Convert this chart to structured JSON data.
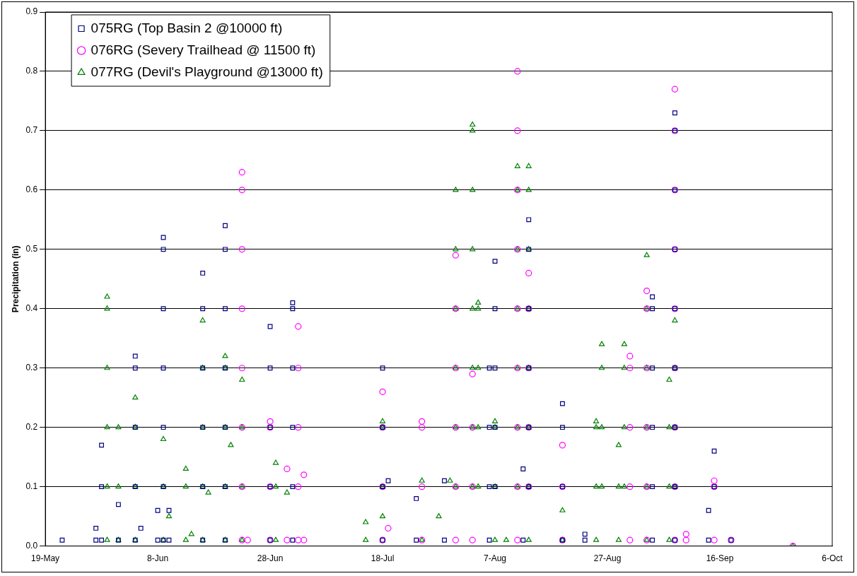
{
  "chart_data": {
    "type": "scatter",
    "ylabel": "Precipitation (in)",
    "xlim": [
      "--05-19",
      "--10-06"
    ],
    "ylim": [
      0,
      0.9
    ],
    "xticks": [
      {
        "value": "--05-19",
        "label": "19-May"
      },
      {
        "value": "--06-08",
        "label": "8-Jun"
      },
      {
        "value": "--06-28",
        "label": "28-Jun"
      },
      {
        "value": "--07-18",
        "label": "18-Jul"
      },
      {
        "value": "--08-07",
        "label": "7-Aug"
      },
      {
        "value": "--08-27",
        "label": "27-Aug"
      },
      {
        "value": "--09-16",
        "label": "16-Sep"
      },
      {
        "value": "--10-06",
        "label": "6-Oct"
      }
    ],
    "yticks": [
      {
        "value": 0,
        "label": "0.0"
      },
      0.1,
      0.2,
      0.3,
      0.4,
      0.5,
      0.6,
      0.7,
      0.8,
      0.9
    ],
    "grid": "y",
    "legend": "top left",
    "series": [
      {
        "name": "075RG (Top Basin 2 @10000 ft)",
        "color": "#000080",
        "marker": "square",
        "x": [
          "--05-22",
          "--05-28",
          "--05-28",
          "--05-29",
          "--05-29",
          "--05-29",
          "--06-01",
          "--06-01",
          "--06-04",
          "--06-04",
          "--06-04",
          "--06-04",
          "--06-04",
          "--06-05",
          "--06-08",
          "--06-08",
          "--06-09",
          "--06-09",
          "--06-09",
          "--06-09",
          "--06-09",
          "--06-09",
          "--06-09",
          "--06-10",
          "--06-10",
          "--06-16",
          "--06-16",
          "--06-16",
          "--06-16",
          "--06-16",
          "--06-16",
          "--06-20",
          "--06-20",
          "--06-20",
          "--06-20",
          "--06-20",
          "--06-20",
          "--06-20",
          "--06-28",
          "--06-28",
          "--06-28",
          "--06-28",
          "--06-28",
          "--07-02",
          "--07-02",
          "--07-02",
          "--07-02",
          "--07-02",
          "--07-02",
          "--07-18",
          "--07-18",
          "--07-18",
          "--07-18",
          "--07-19",
          "--07-24",
          "--07-24",
          "--07-29",
          "--07-29",
          "--08-06",
          "--08-06",
          "--08-06",
          "--08-06",
          "--08-07",
          "--08-07",
          "--08-07",
          "--08-07",
          "--08-07",
          "--08-12",
          "--08-12",
          "--08-13",
          "--08-13",
          "--08-13",
          "--08-13",
          "--08-13",
          "--08-13",
          "--08-19",
          "--08-19",
          "--08-19",
          "--08-19",
          "--08-23",
          "--08-23",
          "--09-04",
          "--09-04",
          "--09-04",
          "--09-04",
          "--09-04",
          "--09-04",
          "--09-08",
          "--09-08",
          "--09-08",
          "--09-08",
          "--09-08",
          "--09-08",
          "--09-08",
          "--09-08",
          "--09-08",
          "--09-14",
          "--09-14",
          "--09-15",
          "--09-15",
          "--09-18"
        ],
        "values": [
          0.01,
          0.01,
          0.03,
          0.01,
          0.1,
          0.17,
          0.01,
          0.07,
          0.01,
          0.1,
          0.2,
          0.3,
          0.32,
          0.03,
          0.01,
          0.06,
          0.01,
          0.1,
          0.2,
          0.3,
          0.4,
          0.5,
          0.52,
          0.01,
          0.06,
          0.01,
          0.1,
          0.2,
          0.3,
          0.4,
          0.46,
          0.01,
          0.1,
          0.2,
          0.3,
          0.4,
          0.5,
          0.54,
          0.01,
          0.1,
          0.2,
          0.3,
          0.37,
          0.01,
          0.1,
          0.2,
          0.3,
          0.4,
          0.41,
          0.01,
          0.1,
          0.2,
          0.3,
          0.11,
          0.01,
          0.08,
          0.01,
          0.11,
          0.01,
          0.1,
          0.2,
          0.3,
          0.1,
          0.2,
          0.3,
          0.4,
          0.48,
          0.01,
          0.13,
          0.1,
          0.2,
          0.3,
          0.4,
          0.5,
          0.55,
          0.01,
          0.1,
          0.2,
          0.24,
          0.01,
          0.02,
          0.01,
          0.1,
          0.2,
          0.3,
          0.4,
          0.42,
          0.01,
          0.1,
          0.2,
          0.3,
          0.4,
          0.5,
          0.6,
          0.7,
          0.73,
          0.01,
          0.06,
          0.1,
          0.16,
          0.01
        ]
      },
      {
        "name": "076RG (Severy Trailhead @ 11500 ft)",
        "color": "#ff00ff",
        "marker": "circle",
        "x": [
          "--06-23",
          "--06-23",
          "--06-23",
          "--06-23",
          "--06-23",
          "--06-23",
          "--06-23",
          "--06-23",
          "--06-24",
          "--06-28",
          "--06-28",
          "--06-28",
          "--06-28",
          "--07-01",
          "--07-01",
          "--07-03",
          "--07-03",
          "--07-03",
          "--07-03",
          "--07-03",
          "--07-04",
          "--07-04",
          "--07-18",
          "--07-18",
          "--07-18",
          "--07-18",
          "--07-19",
          "--07-25",
          "--07-25",
          "--07-25",
          "--07-25",
          "--07-31",
          "--07-31",
          "--07-31",
          "--07-31",
          "--07-31",
          "--07-31",
          "--08-03",
          "--08-03",
          "--08-03",
          "--08-03",
          "--08-11",
          "--08-11",
          "--08-11",
          "--08-11",
          "--08-11",
          "--08-11",
          "--08-11",
          "--08-11",
          "--08-11",
          "--08-13",
          "--08-13",
          "--08-13",
          "--08-13",
          "--08-13",
          "--08-19",
          "--08-19",
          "--08-19",
          "--08-31",
          "--08-31",
          "--08-31",
          "--08-31",
          "--08-31",
          "--09-03",
          "--09-03",
          "--09-03",
          "--09-03",
          "--09-03",
          "--09-03",
          "--09-08",
          "--09-08",
          "--09-08",
          "--09-08",
          "--09-08",
          "--09-08",
          "--09-08",
          "--09-08",
          "--09-08",
          "--09-10",
          "--09-10",
          "--09-15",
          "--09-15",
          "--09-15",
          "--09-18",
          "--09-29"
        ],
        "values": [
          0.01,
          0.1,
          0.2,
          0.3,
          0.4,
          0.5,
          0.6,
          0.63,
          0.01,
          0.01,
          0.1,
          0.2,
          0.21,
          0.01,
          0.13,
          0.01,
          0.1,
          0.2,
          0.3,
          0.37,
          0.01,
          0.12,
          0.01,
          0.1,
          0.2,
          0.26,
          0.03,
          0.01,
          0.1,
          0.2,
          0.21,
          0.01,
          0.1,
          0.2,
          0.3,
          0.4,
          0.49,
          0.01,
          0.1,
          0.2,
          0.29,
          0.01,
          0.1,
          0.2,
          0.3,
          0.4,
          0.5,
          0.6,
          0.7,
          0.8,
          0.1,
          0.2,
          0.3,
          0.4,
          0.46,
          0.01,
          0.1,
          0.17,
          0.01,
          0.1,
          0.2,
          0.3,
          0.32,
          0.01,
          0.1,
          0.2,
          0.3,
          0.4,
          0.43,
          0.01,
          0.1,
          0.2,
          0.3,
          0.4,
          0.5,
          0.6,
          0.7,
          0.77,
          0.01,
          0.02,
          0.01,
          0.1,
          0.11,
          0.01,
          0
        ]
      },
      {
        "name": "077RG (Devil's Playground @13000 ft)",
        "color": "#008000",
        "marker": "triangle",
        "x": [
          "--05-30",
          "--05-30",
          "--05-30",
          "--05-30",
          "--05-30",
          "--05-30",
          "--06-01",
          "--06-01",
          "--06-01",
          "--06-04",
          "--06-04",
          "--06-04",
          "--06-04",
          "--06-09",
          "--06-09",
          "--06-09",
          "--06-10",
          "--06-13",
          "--06-13",
          "--06-13",
          "--06-14",
          "--06-16",
          "--06-16",
          "--06-16",
          "--06-16",
          "--06-16",
          "--06-17",
          "--06-20",
          "--06-20",
          "--06-20",
          "--06-20",
          "--06-20",
          "--06-21",
          "--06-23",
          "--06-23",
          "--06-23",
          "--06-23",
          "--06-29",
          "--06-29",
          "--06-29",
          "--07-01",
          "--07-15",
          "--07-15",
          "--07-18",
          "--07-18",
          "--07-18",
          "--07-18",
          "--07-25",
          "--07-25",
          "--07-28",
          "--07-30",
          "--07-31",
          "--07-31",
          "--07-31",
          "--07-31",
          "--07-31",
          "--07-31",
          "--08-03",
          "--08-03",
          "--08-03",
          "--08-03",
          "--08-03",
          "--08-03",
          "--08-03",
          "--08-03",
          "--08-04",
          "--08-04",
          "--08-04",
          "--08-04",
          "--08-04",
          "--08-07",
          "--08-07",
          "--08-07",
          "--08-07",
          "--08-09",
          "--08-11",
          "--08-11",
          "--08-11",
          "--08-11",
          "--08-11",
          "--08-11",
          "--08-11",
          "--08-13",
          "--08-13",
          "--08-13",
          "--08-13",
          "--08-13",
          "--08-13",
          "--08-13",
          "--08-13",
          "--08-19",
          "--08-19",
          "--08-25",
          "--08-25",
          "--08-25",
          "--08-25",
          "--08-26",
          "--08-26",
          "--08-26",
          "--08-26",
          "--08-29",
          "--08-29",
          "--08-29",
          "--08-30",
          "--08-30",
          "--08-30",
          "--08-30",
          "--09-03",
          "--09-03",
          "--09-03",
          "--09-03",
          "--09-03",
          "--09-03",
          "--09-07",
          "--09-07",
          "--09-07",
          "--09-07",
          "--09-08",
          "--09-08",
          "--09-08",
          "--09-08",
          "--09-29"
        ],
        "values": [
          0.01,
          0.1,
          0.2,
          0.3,
          0.4,
          0.42,
          0.01,
          0.1,
          0.2,
          0.01,
          0.1,
          0.2,
          0.25,
          0.01,
          0.1,
          0.18,
          0.05,
          0.01,
          0.1,
          0.13,
          0.02,
          0.01,
          0.1,
          0.2,
          0.3,
          0.38,
          0.09,
          0.01,
          0.1,
          0.2,
          0.3,
          0.32,
          0.17,
          0.01,
          0.1,
          0.2,
          0.28,
          0.01,
          0.1,
          0.14,
          0.09,
          0.01,
          0.04,
          0.05,
          0.1,
          0.2,
          0.21,
          0.01,
          0.11,
          0.05,
          0.11,
          0.1,
          0.2,
          0.3,
          0.4,
          0.5,
          0.6,
          0.1,
          0.2,
          0.3,
          0.4,
          0.5,
          0.6,
          0.7,
          0.71,
          0.1,
          0.2,
          0.3,
          0.4,
          0.41,
          0.01,
          0.1,
          0.2,
          0.21,
          0.01,
          0.1,
          0.2,
          0.3,
          0.4,
          0.5,
          0.6,
          0.64,
          0.01,
          0.1,
          0.2,
          0.3,
          0.4,
          0.5,
          0.6,
          0.64,
          0.01,
          0.06,
          0.01,
          0.1,
          0.2,
          0.21,
          0.1,
          0.2,
          0.3,
          0.34,
          0.01,
          0.1,
          0.17,
          0.1,
          0.2,
          0.3,
          0.34,
          0.01,
          0.1,
          0.2,
          0.3,
          0.4,
          0.49,
          0.01,
          0.1,
          0.2,
          0.28,
          0.1,
          0.2,
          0.3,
          0.38,
          0
        ]
      }
    ]
  }
}
